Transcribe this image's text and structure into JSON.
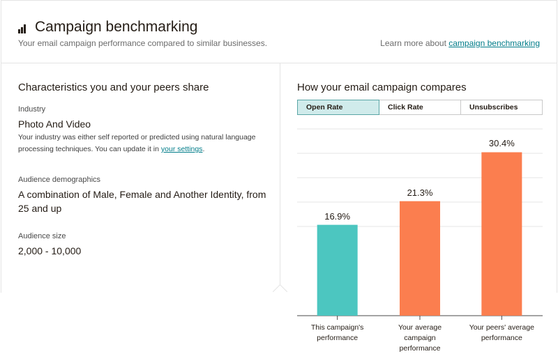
{
  "header": {
    "title": "Campaign benchmarking",
    "subtitle": "Your email campaign performance compared to similar businesses.",
    "learn_more_prefix": "Learn more about",
    "learn_more_link": "campaign benchmarking",
    "icon": "bar-chart-icon"
  },
  "characteristics": {
    "heading": "Characteristics you and your peers share",
    "industry": {
      "label": "Industry",
      "value": "Photo And Video",
      "description_prefix": "Your industry was either self reported or predicted using natural language processing techniques. You can update it in",
      "description_link": "your settings",
      "description_suffix": "."
    },
    "demographics": {
      "label": "Audience demographics",
      "value": "A combination of Male, Female and Another Identity, from 25 and up"
    },
    "size": {
      "label": "Audience size",
      "value": "2,000 - 10,000"
    }
  },
  "comparison": {
    "heading": "How your email campaign compares",
    "tabs": [
      {
        "label": "Open Rate",
        "active": true
      },
      {
        "label": "Click Rate",
        "active": false
      },
      {
        "label": "Unsubscribes",
        "active": false
      }
    ]
  },
  "chart_data": {
    "type": "bar",
    "categories": [
      "This campaign's performance",
      "Your average campaign performance",
      "Your peers' average performance"
    ],
    "category_lines": [
      [
        "This campaign's",
        "performance"
      ],
      [
        "Your average campaign",
        "performance"
      ],
      [
        "Your peers' average",
        "performance"
      ]
    ],
    "values": [
      16.9,
      21.3,
      30.4
    ],
    "value_labels": [
      "16.9%",
      "21.3%",
      "30.4%"
    ],
    "colors": [
      "#4cc6c0",
      "#fb7e4f",
      "#fb7e4f"
    ],
    "ylim": [
      0,
      35
    ],
    "grid": true,
    "title": "",
    "xlabel": "",
    "ylabel": ""
  }
}
